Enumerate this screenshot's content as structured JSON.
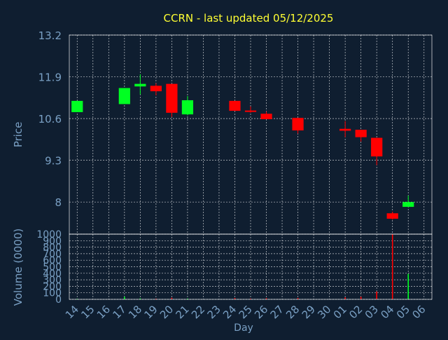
{
  "colors": {
    "background": "#0f1e30",
    "title": "#ffff33",
    "axis_text": "#7aa0c4",
    "frame": "#ffffff",
    "grid": "#ffffff",
    "up": "#00ff22",
    "down": "#ff0000"
  },
  "chart_data": [
    {
      "type": "candlestick",
      "title": "CCRN - last updated 05/12/2025",
      "ylabel": "Price",
      "ylim": [
        7.0,
        13.2
      ],
      "yticks": [
        8,
        9.3,
        10.6,
        11.9,
        13.2
      ],
      "grid": true,
      "categories": [
        "14",
        "15",
        "16",
        "17",
        "18",
        "19",
        "20",
        "21",
        "22",
        "23",
        "24",
        "25",
        "26",
        "27",
        "28",
        "29",
        "30",
        "01",
        "02",
        "03",
        "04",
        "05",
        "06"
      ],
      "candles": [
        {
          "x": "14",
          "open": 10.8,
          "close": 11.15,
          "high": 11.15,
          "low": 10.8
        },
        {
          "x": "17",
          "open": 11.05,
          "close": 11.55,
          "high": 11.55,
          "low": 11.05
        },
        {
          "x": "18",
          "open": 11.6,
          "close": 11.68,
          "high": 11.98,
          "low": 11.35
        },
        {
          "x": "19",
          "open": 11.62,
          "close": 11.45,
          "high": 11.7,
          "low": 11.32
        },
        {
          "x": "20",
          "open": 11.68,
          "close": 10.78,
          "high": 11.68,
          "low": 10.65
        },
        {
          "x": "21",
          "open": 10.73,
          "close": 11.17,
          "high": 11.3,
          "low": 10.7
        },
        {
          "x": "24",
          "open": 11.15,
          "close": 10.84,
          "high": 11.15,
          "low": 10.84
        },
        {
          "x": "25",
          "open": 10.85,
          "close": 10.82,
          "high": 10.98,
          "low": 10.78
        },
        {
          "x": "26",
          "open": 10.75,
          "close": 10.58,
          "high": 10.82,
          "low": 10.58
        },
        {
          "x": "28",
          "open": 10.62,
          "close": 10.23,
          "high": 10.62,
          "low": 10.13
        },
        {
          "x": "01",
          "open": 10.28,
          "close": 10.22,
          "high": 10.52,
          "low": 10.02
        },
        {
          "x": "02",
          "open": 10.25,
          "close": 10.02,
          "high": 10.25,
          "low": 9.88
        },
        {
          "x": "03",
          "open": 10.0,
          "close": 9.42,
          "high": 10.0,
          "low": 9.15
        },
        {
          "x": "04",
          "open": 7.65,
          "close": 7.48,
          "high": 7.7,
          "low": 7.45
        },
        {
          "x": "05",
          "open": 7.85,
          "close": 8.0,
          "high": 8.2,
          "low": 7.85
        }
      ]
    },
    {
      "type": "bar",
      "ylabel": "Volume (0000)",
      "xlabel": "Day",
      "ylim": [
        0,
        1000
      ],
      "yticks": [
        0,
        100,
        200,
        300,
        400,
        500,
        600,
        700,
        800,
        900,
        1000
      ],
      "categories": [
        "14",
        "15",
        "16",
        "17",
        "18",
        "19",
        "20",
        "21",
        "22",
        "23",
        "24",
        "25",
        "26",
        "27",
        "28",
        "29",
        "30",
        "01",
        "02",
        "03",
        "04",
        "05",
        "06"
      ],
      "bars": [
        {
          "x": "14",
          "value": 8,
          "direction": "up"
        },
        {
          "x": "17",
          "value": 40,
          "direction": "up"
        },
        {
          "x": "18",
          "value": 15,
          "direction": "up"
        },
        {
          "x": "19",
          "value": 10,
          "direction": "down"
        },
        {
          "x": "20",
          "value": 25,
          "direction": "down"
        },
        {
          "x": "21",
          "value": 12,
          "direction": "up"
        },
        {
          "x": "24",
          "value": 20,
          "direction": "down"
        },
        {
          "x": "25",
          "value": 12,
          "direction": "down"
        },
        {
          "x": "26",
          "value": 18,
          "direction": "down"
        },
        {
          "x": "28",
          "value": 20,
          "direction": "down"
        },
        {
          "x": "01",
          "value": 30,
          "direction": "down"
        },
        {
          "x": "02",
          "value": 40,
          "direction": "down"
        },
        {
          "x": "03",
          "value": 120,
          "direction": "down"
        },
        {
          "x": "04",
          "value": 1000,
          "direction": "down"
        },
        {
          "x": "05",
          "value": 390,
          "direction": "up"
        }
      ]
    }
  ]
}
